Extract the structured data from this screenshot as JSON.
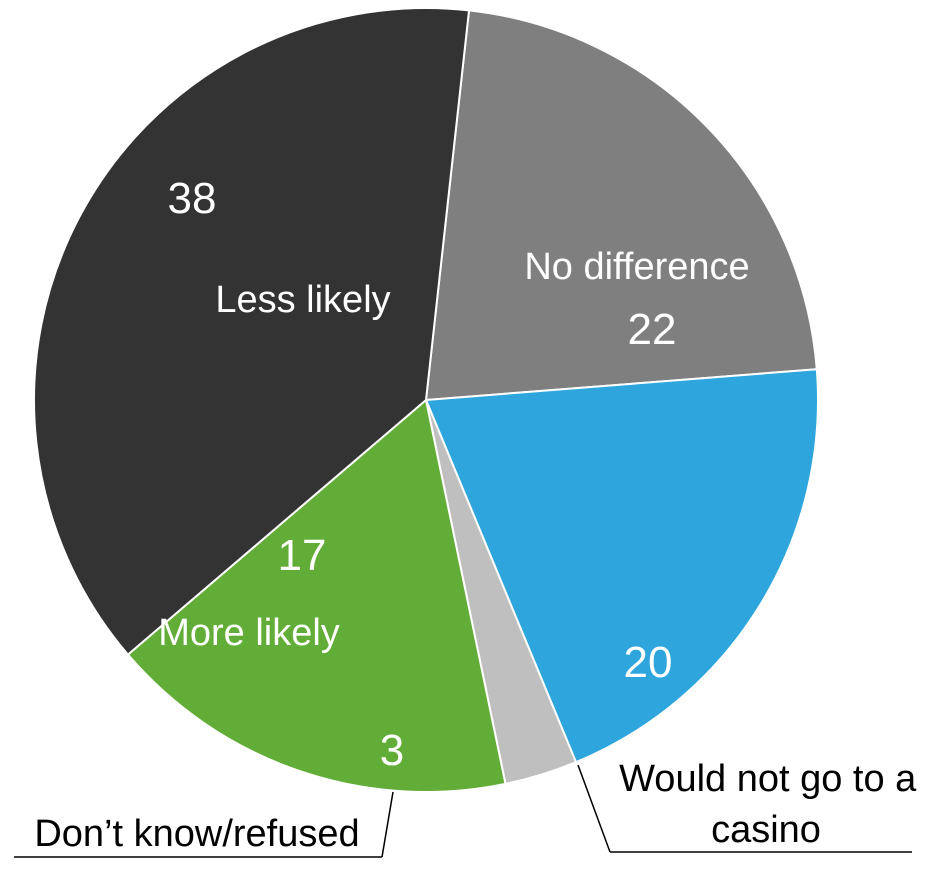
{
  "chart_data": {
    "type": "pie",
    "slices": [
      {
        "label": "Less likely",
        "value": 38,
        "color": "#333333"
      },
      {
        "label": "No difference",
        "value": 22,
        "color": "#7f7f7f"
      },
      {
        "label": "Would not go to a casino",
        "value": 20,
        "color": "#2ea6dd"
      },
      {
        "label": "Don’t know/refused",
        "value": 3,
        "color": "#bfbfbf"
      },
      {
        "label": "More likely",
        "value": 17,
        "color": "#62ad37"
      }
    ]
  }
}
